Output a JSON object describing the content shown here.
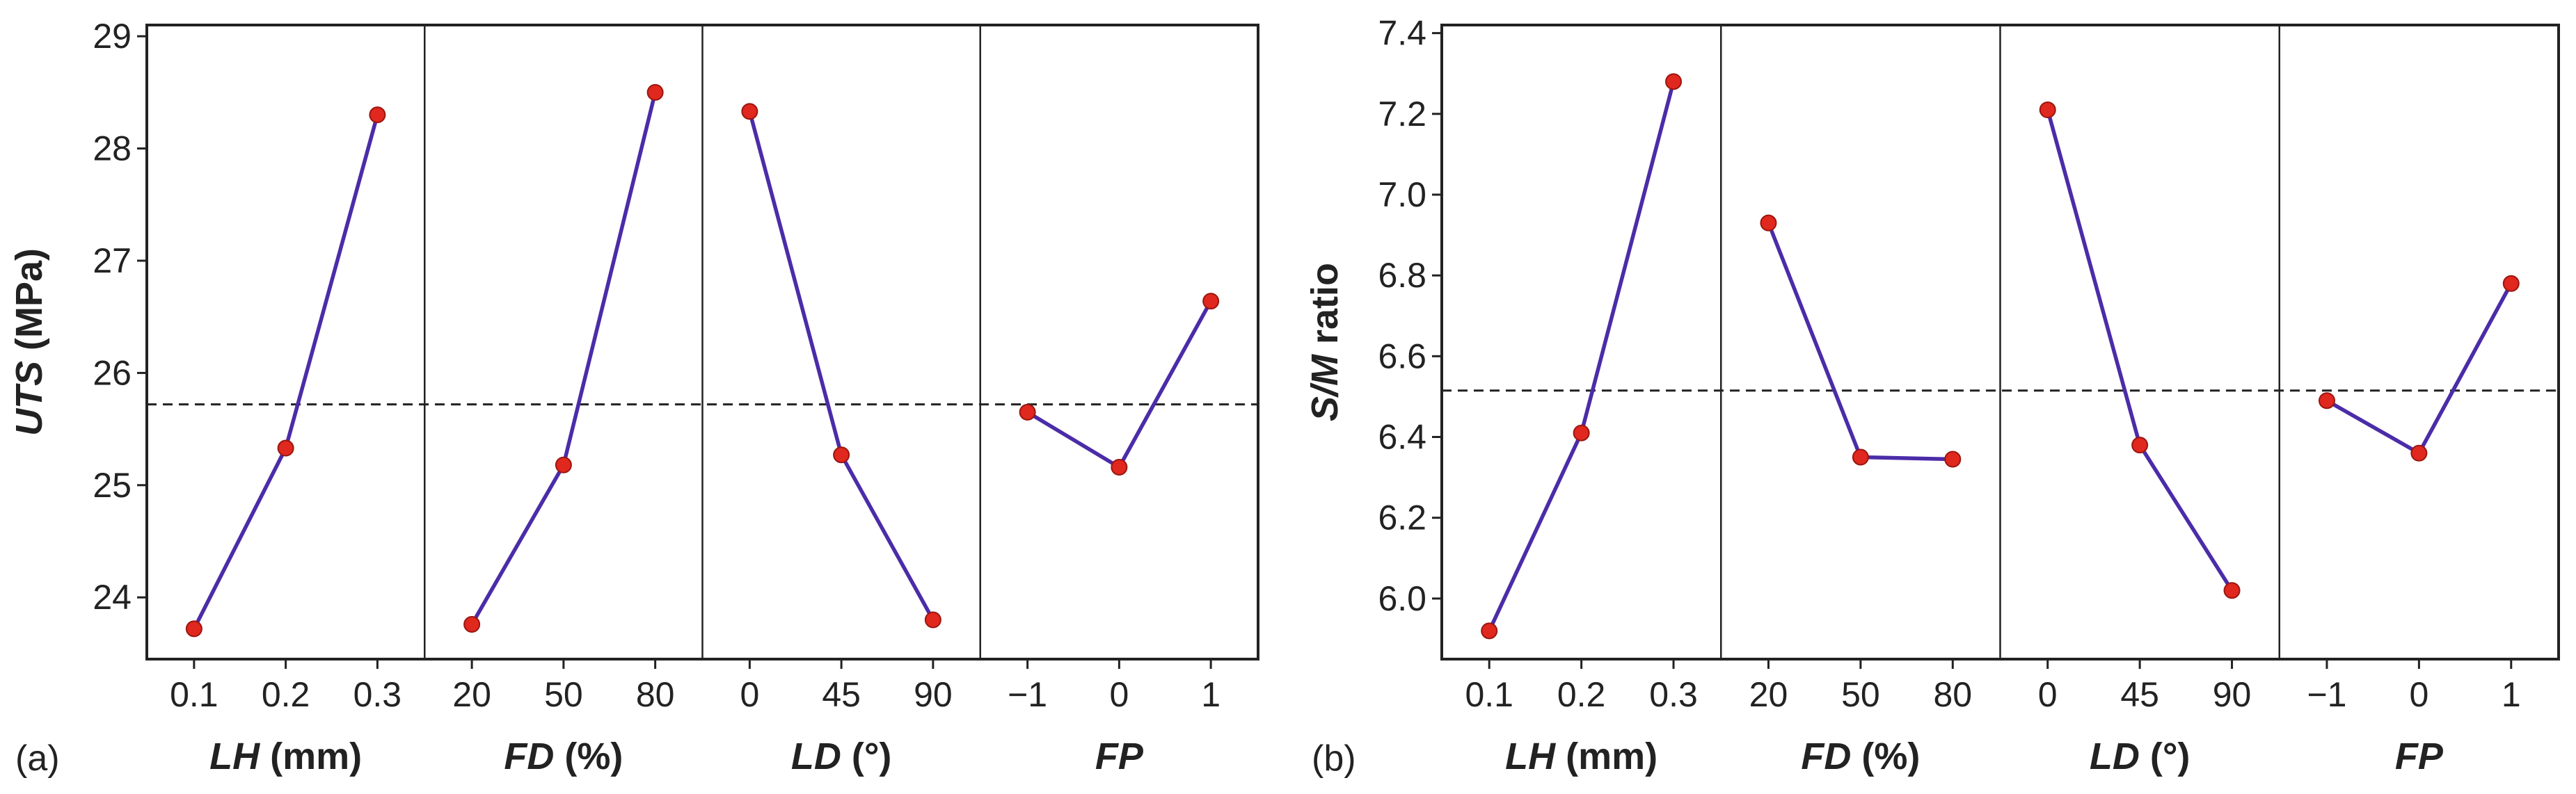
{
  "chart_data": [
    {
      "type": "line",
      "panel_label": "(a)",
      "ylabel_italic": "UTS",
      "ylabel_rest": " (MPa)",
      "ylim": [
        23.45,
        29.1
      ],
      "yticks": [
        24,
        25,
        26,
        27,
        28,
        29
      ],
      "ytick_labels": [
        "24",
        "25",
        "26",
        "27",
        "28",
        "29"
      ],
      "mean_line": 25.72,
      "grid": false,
      "line_color": "#4b2ca8",
      "marker_color": "#e0281e",
      "factors": [
        {
          "label_italic": "LH",
          "label_rest": " (mm)",
          "categories": [
            "0.1",
            "0.2",
            "0.3"
          ],
          "values": [
            23.72,
            25.33,
            28.3
          ]
        },
        {
          "label_italic": "FD",
          "label_rest": " (%)",
          "categories": [
            "20",
            "50",
            "80"
          ],
          "values": [
            23.76,
            25.18,
            28.5
          ]
        },
        {
          "label_italic": "LD",
          "label_rest": " (°)",
          "categories": [
            "0",
            "45",
            "90"
          ],
          "values": [
            28.33,
            25.27,
            23.8
          ]
        },
        {
          "label_italic": "FP",
          "label_rest": "",
          "categories": [
            "−1",
            "0",
            "1"
          ],
          "values": [
            25.65,
            25.16,
            26.64
          ]
        }
      ]
    },
    {
      "type": "line",
      "panel_label": "(b)",
      "ylabel_italic": "S/M",
      "ylabel_rest": " ratio",
      "ylim": [
        5.85,
        7.42
      ],
      "yticks": [
        6.0,
        6.2,
        6.4,
        6.6,
        6.8,
        7.0,
        7.2,
        7.4
      ],
      "ytick_labels": [
        "6.0",
        "6.2",
        "6.4",
        "6.6",
        "6.8",
        "7.0",
        "7.2",
        "7.4"
      ],
      "mean_line": 6.515,
      "grid": false,
      "line_color": "#4b2ca8",
      "marker_color": "#e0281e",
      "factors": [
        {
          "label_italic": "LH",
          "label_rest": " (mm)",
          "categories": [
            "0.1",
            "0.2",
            "0.3"
          ],
          "values": [
            5.92,
            6.41,
            7.28
          ]
        },
        {
          "label_italic": "FD",
          "label_rest": " (%)",
          "categories": [
            "20",
            "50",
            "80"
          ],
          "values": [
            6.93,
            6.35,
            6.345
          ]
        },
        {
          "label_italic": "LD",
          "label_rest": " (°)",
          "categories": [
            "0",
            "45",
            "90"
          ],
          "values": [
            7.21,
            6.38,
            6.02
          ]
        },
        {
          "label_italic": "FP",
          "label_rest": "",
          "categories": [
            "−1",
            "0",
            "1"
          ],
          "values": [
            6.49,
            6.36,
            6.78
          ]
        }
      ]
    }
  ]
}
